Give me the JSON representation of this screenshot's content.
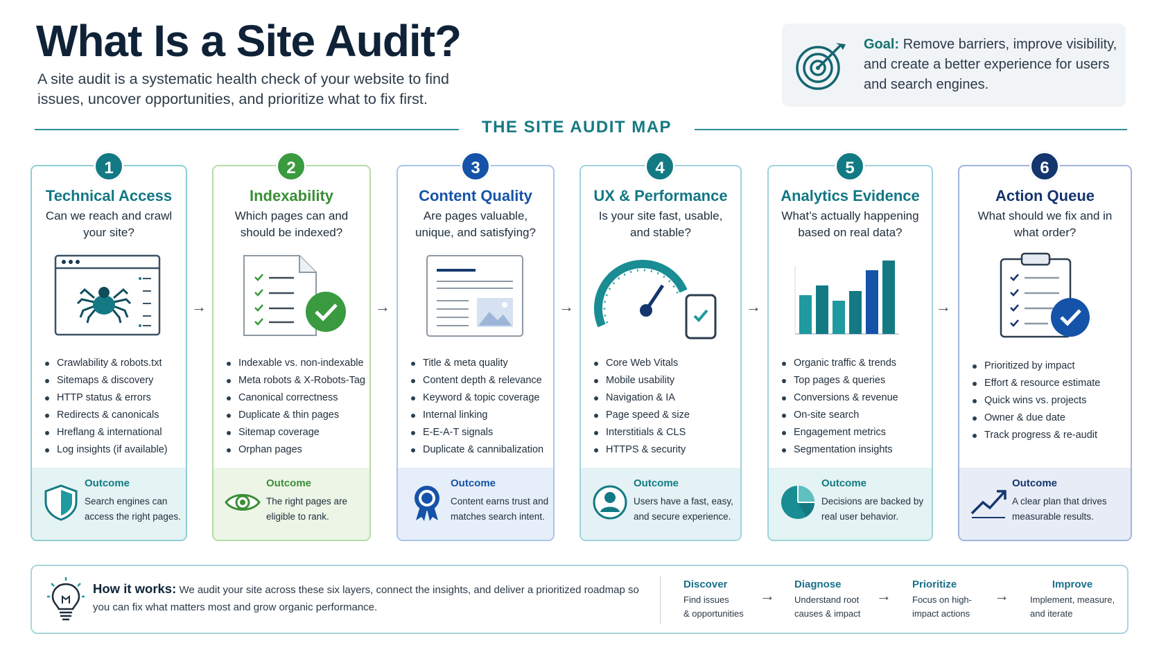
{
  "header": {
    "title": "What Is a Site Audit?",
    "subtitle": "A site audit is a systematic health check of your website to find issues, uncover opportunities, and prioritize what to fix first."
  },
  "goal": {
    "label": "Goal:",
    "text": "Remove barriers, improve visibility, and create a better experience for users and search engines.",
    "icon": "target-icon"
  },
  "map_title": "THE SITE AUDIT MAP",
  "colors": {
    "teal": "#137a84",
    "green": "#3a9a3f",
    "blue": "#1553a8",
    "navy": "#14356d"
  },
  "cards": [
    {
      "number": "1",
      "title": "Technical Access",
      "question": "Can we reach and crawl your site?",
      "illustration": "spider-browser-icon",
      "items": [
        "Crawlability & robots.txt",
        "Sitemaps & discovery",
        "HTTP status & errors",
        "Redirects & canonicals",
        "Hreflang & international",
        "Log insights (if available)"
      ],
      "outcome_label": "Outcome",
      "outcome_text": "Search engines can access the right pages.",
      "outcome_icon": "shield-icon"
    },
    {
      "number": "2",
      "title": "Indexability",
      "question": "Which pages can and should be indexed?",
      "illustration": "checklist-document-icon",
      "items": [
        "Indexable vs. non-indexable",
        "Meta robots & X-Robots-Tag",
        "Canonical correctness",
        "Duplicate & thin pages",
        "Sitemap coverage",
        "Orphan pages"
      ],
      "outcome_label": "Outcome",
      "outcome_text": "The right pages are eligible to rank.",
      "outcome_icon": "eye-icon"
    },
    {
      "number": "3",
      "title": "Content Quality",
      "question": "Are pages valuable, unique, and satisfying?",
      "illustration": "content-page-icon",
      "items": [
        "Title & meta quality",
        "Content depth & relevance",
        "Keyword & topic coverage",
        "Internal linking",
        "E-E-A-T signals",
        "Duplicate & cannibalization"
      ],
      "outcome_label": "Outcome",
      "outcome_text": "Content earns trust and matches search intent.",
      "outcome_icon": "award-ribbon-icon"
    },
    {
      "number": "4",
      "title": "UX & Performance",
      "question": "Is your site fast, usable, and stable?",
      "illustration": "speedometer-phone-icon",
      "items": [
        "Core Web Vitals",
        "Mobile usability",
        "Navigation & IA",
        "Page speed & size",
        "Interstitials & CLS",
        "HTTPS & security"
      ],
      "outcome_label": "Outcome",
      "outcome_text": "Users have a fast, easy, and secure experience.",
      "outcome_icon": "user-icon"
    },
    {
      "number": "5",
      "title": "Analytics Evidence",
      "question": "What’s actually happening based on real data?",
      "illustration": "bar-chart-icon",
      "items": [
        "Organic traffic & trends",
        "Top pages & queries",
        "Conversions & revenue",
        "On-site search",
        "Engagement metrics",
        "Segmentation insights"
      ],
      "outcome_label": "Outcome",
      "outcome_text": "Decisions are backed by real user behavior.",
      "outcome_icon": "pie-chart-icon"
    },
    {
      "number": "6",
      "title": "Action Queue",
      "question": "What should we fix and in what order?",
      "illustration": "clipboard-check-icon",
      "items": [
        "Prioritized by impact",
        "Effort & resource estimate",
        "Quick wins vs. projects",
        "Owner & due date",
        "Track progress & re-audit"
      ],
      "outcome_label": "Outcome",
      "outcome_text": "A clear plan that drives measurable results.",
      "outcome_icon": "trend-up-icon"
    }
  ],
  "how_it_works": {
    "label": "How it works:",
    "text": "We audit your site across these six layers, connect the insights, and deliver a prioritized roadmap so you can fix what matters most and grow organic performance.",
    "icon": "lightbulb-icon",
    "steps": [
      {
        "title": "Discover",
        "line1": "Find issues",
        "line2": "& opportunities"
      },
      {
        "title": "Diagnose",
        "line1": "Understand root",
        "line2": "causes & impact"
      },
      {
        "title": "Prioritize",
        "line1": "Focus on high-",
        "line2": "impact actions"
      },
      {
        "title": "Improve",
        "line1": "Implement, measure,",
        "line2": "and iterate"
      }
    ]
  }
}
